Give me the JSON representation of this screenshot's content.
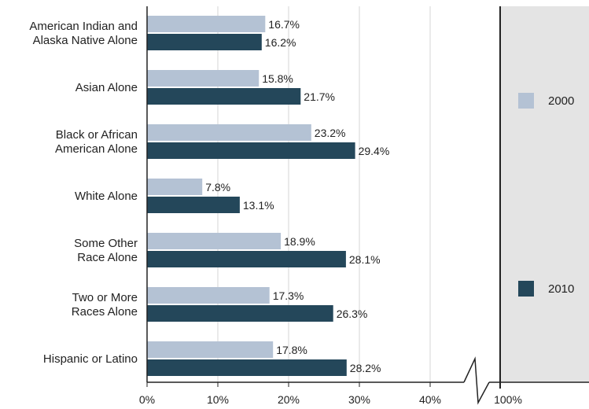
{
  "chart_data": {
    "type": "bar",
    "orientation": "horizontal",
    "categories": [
      [
        "American Indian and",
        "Alaska Native Alone"
      ],
      [
        "Asian Alone"
      ],
      [
        "Black or African",
        "American Alone"
      ],
      [
        "White Alone"
      ],
      [
        "Some Other",
        "Race Alone"
      ],
      [
        "Two or More",
        "Races Alone"
      ],
      [
        "Hispanic or Latino"
      ]
    ],
    "series": [
      {
        "name": "2000",
        "color": "#b4c2d4",
        "values": [
          16.7,
          15.8,
          23.2,
          7.8,
          18.9,
          17.3,
          17.8
        ],
        "labels": [
          "16.7%",
          "15.8%",
          "23.2%",
          "7.8%",
          "18.9%",
          "17.3%",
          "17.8%"
        ]
      },
      {
        "name": "2010",
        "color": "#24475a",
        "values": [
          16.2,
          21.7,
          29.4,
          13.1,
          28.1,
          26.3,
          28.2
        ],
        "labels": [
          "16.2%",
          "21.7%",
          "29.4%",
          "13.1%",
          "28.1%",
          "26.3%",
          "28.2%"
        ]
      }
    ],
    "x_ticks": [
      0,
      10,
      20,
      30,
      40
    ],
    "x_tick_labels": [
      "0%",
      "10%",
      "20%",
      "30%",
      "40%"
    ],
    "axis_break_label": "100%",
    "xlim": [
      0,
      100
    ],
    "grid": true,
    "legend_position": "right"
  }
}
